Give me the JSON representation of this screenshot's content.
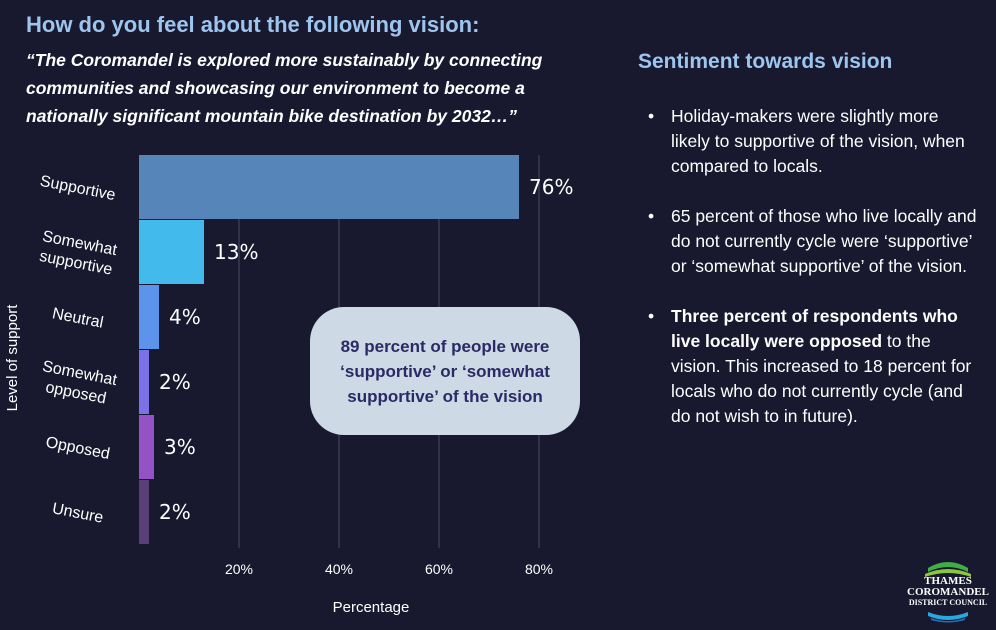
{
  "heading": "How do you feel about the following vision:",
  "quote": "“The Coromandel is explored more sustainably by connecting communities and showcasing our environment to become a nationally significant mountain bike destination by 2032…”",
  "chart_data": {
    "type": "bar",
    "orientation": "horizontal",
    "categories": [
      "Supportive",
      "Somewhat supportive",
      "Neutral",
      "Somewhat opposed",
      "Opposed",
      "Unsure"
    ],
    "category_lines": [
      [
        "Supportive"
      ],
      [
        "Somewhat",
        "supportive"
      ],
      [
        "Neutral"
      ],
      [
        "Somewhat",
        "opposed"
      ],
      [
        "Opposed"
      ],
      [
        "Unsure"
      ]
    ],
    "values": [
      76,
      13,
      4,
      2,
      3,
      2
    ],
    "value_labels": [
      "76%",
      "13%",
      "4%",
      "2%",
      "3%",
      "2%"
    ],
    "colors": [
      "#5686b9",
      "#42baec",
      "#5c94ec",
      "#7a72e6",
      "#9452c6",
      "#5a3e78"
    ],
    "xlim": [
      0,
      80
    ],
    "xticks": [
      20,
      40,
      60,
      80
    ],
    "xtick_labels": [
      "20%",
      "40%",
      "60%",
      "80%"
    ],
    "grid": true,
    "xlabel": "Percentage",
    "ylabel": "Level of support"
  },
  "callout": "89 percent of people were ‘supportive’ or ‘somewhat supportive’ of the vision",
  "sidebar": {
    "title": "Sentiment towards vision",
    "bullets": [
      {
        "bold": "",
        "text": "Holiday-makers were slightly more likely to supportive of the vision, when compared to locals."
      },
      {
        "bold": "",
        "text": "65 percent of those who live locally and do not currently cycle were ‘supportive’ or ‘somewhat supportive’ of the vision."
      },
      {
        "bold": "Three percent of respondents who live locally were opposed",
        "text": " to the vision. This increased to 18 percent for locals who do not currently cycle (and do not wish to in future)."
      }
    ]
  },
  "logo": {
    "line1": "THAMES",
    "line2": "COROMANDEL",
    "line3": "DISTRICT COUNCIL"
  }
}
